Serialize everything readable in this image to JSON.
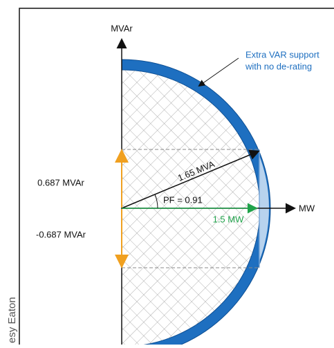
{
  "axes": {
    "y_label": "MVAr",
    "x_label": "MW"
  },
  "callout": {
    "line1": "Extra VAR support",
    "line2": "with no de-rating"
  },
  "labels": {
    "apparent": "1.65 MVA",
    "power_factor": "PF = 0.91",
    "real": "1.5 MW",
    "reactive_pos": "0.687 MVAr",
    "reactive_neg": "-0.687 MVAr"
  },
  "credit": "esy Eaton"
}
